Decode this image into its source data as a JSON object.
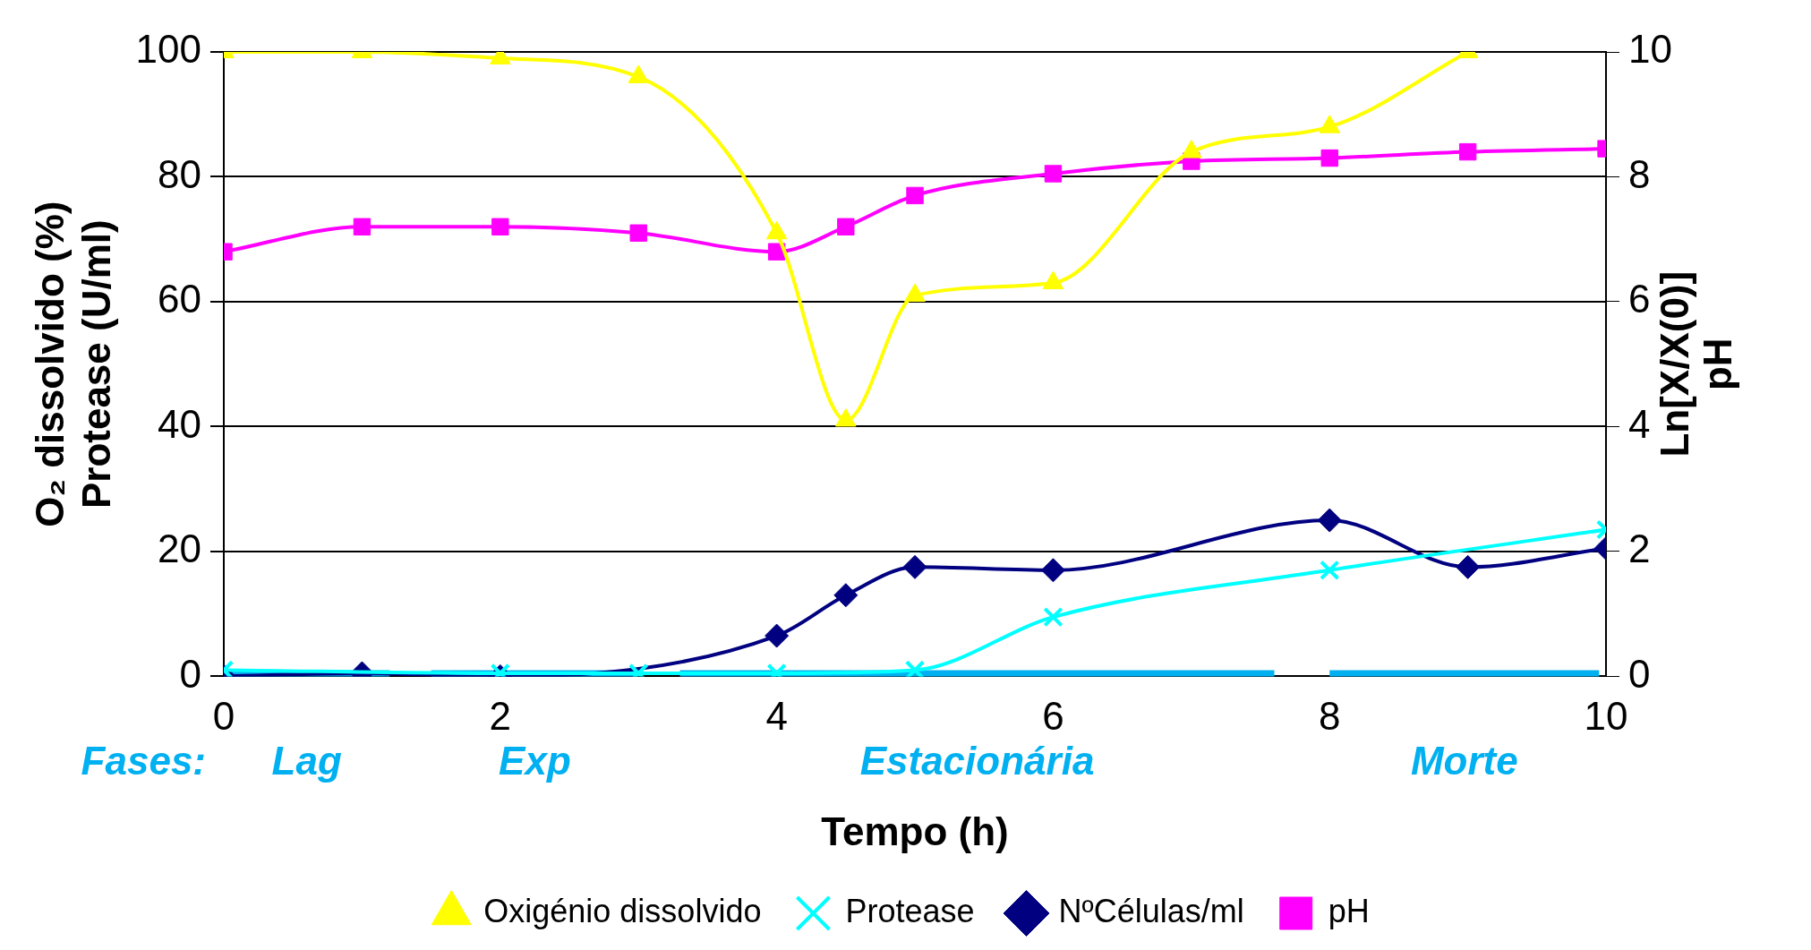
{
  "chart_data": {
    "type": "line",
    "xlabel": "Tempo (h)",
    "ylabel": "O₂ dissolvido (%)\nProtease (U/ml)",
    "y2label": "Ln[X/X(0)]\npH",
    "xlim": [
      0,
      10
    ],
    "xticks": [
      0,
      2,
      4,
      6,
      8,
      10
    ],
    "ylim": [
      0,
      100
    ],
    "yticks": [
      0,
      20,
      40,
      60,
      80,
      100
    ],
    "y2lim": [
      0,
      10
    ],
    "y2ticks": [
      0,
      2,
      4,
      6,
      8,
      10
    ],
    "grid": "y",
    "legend": "bottom",
    "series": [
      {
        "name": "Oxigénio dissolvido",
        "color": "#ffff00",
        "marker": "triangle",
        "x": [
          0,
          1,
          2,
          3,
          4,
          4.5,
          5,
          6,
          7,
          8,
          9
        ],
        "values": [
          100,
          100,
          99,
          96,
          71,
          41,
          61,
          63,
          84,
          88,
          100
        ]
      },
      {
        "name": "Protease",
        "color": "#00ffff",
        "marker": "cross",
        "x": [
          0,
          2,
          3,
          4,
          5,
          6,
          8,
          10
        ],
        "values": [
          1,
          0.5,
          0.5,
          0.5,
          1,
          9.5,
          17,
          23.5
        ]
      },
      {
        "name": "NºCélulas/ml",
        "color": "#000080",
        "marker": "diamond",
        "axis": "y2",
        "x": [
          0,
          1,
          2,
          4,
          4.5,
          5,
          6,
          8,
          9,
          10
        ],
        "values": [
          0,
          0.05,
          0,
          0.65,
          1.3,
          1.75,
          1.7,
          2.5,
          1.75,
          2.05
        ]
      },
      {
        "name": "pH",
        "color": "#ff00ff",
        "marker": "square",
        "axis": "y2",
        "x": [
          0,
          1,
          2,
          3,
          4,
          4.5,
          5,
          6,
          7,
          8,
          9,
          10
        ],
        "values": [
          6.8,
          7.2,
          7.2,
          7.1,
          6.8,
          7.2,
          7.7,
          8.05,
          8.25,
          8.3,
          8.4,
          8.45
        ]
      },
      {
        "name": "Lag",
        "color": "#00b0f0",
        "marker": "none",
        "x": [
          0,
          1.2
        ],
        "values": [
          0,
          0
        ]
      },
      {
        "name": "Exp",
        "color": "#00b0f0",
        "marker": "none",
        "x": [
          1.5,
          3
        ],
        "values": [
          0,
          0
        ]
      },
      {
        "name": "Estacionária",
        "color": "#00b0f0",
        "marker": "none",
        "x": [
          3.3,
          7.6
        ],
        "values": [
          0,
          0
        ]
      },
      {
        "name": "Morte",
        "color": "#00b0f0",
        "marker": "none",
        "x": [
          8,
          9.95
        ],
        "values": [
          0,
          0
        ]
      }
    ],
    "annotations": [
      "Fases:"
    ]
  }
}
